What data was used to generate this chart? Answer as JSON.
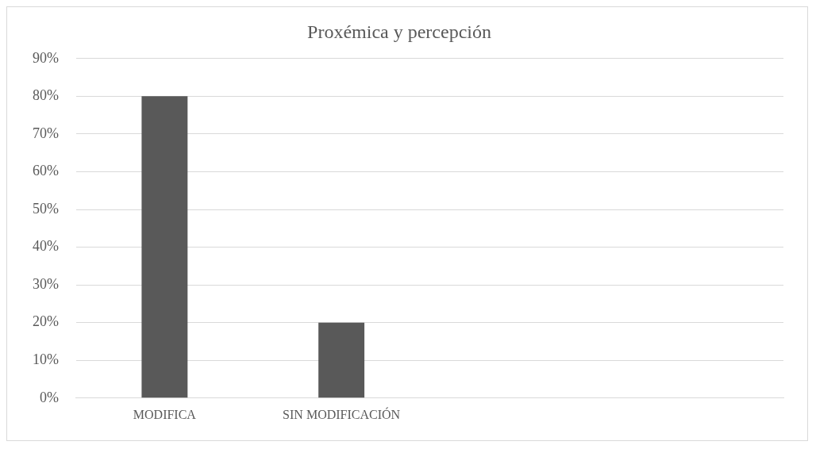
{
  "chart_data": {
    "type": "bar",
    "title": "Proxémica y percepción",
    "categories": [
      "MODIFICA",
      "SIN MODIFICACIÓN",
      null,
      null
    ],
    "series": [
      {
        "color": "#595959",
        "values": [
          80,
          20,
          null,
          null
        ]
      }
    ],
    "ylim": [
      0,
      90
    ],
    "yticks": [
      {
        "value": 0,
        "label": "0%"
      },
      {
        "value": 10,
        "label": "10%"
      },
      {
        "value": 20,
        "label": "20%"
      },
      {
        "value": 30,
        "label": "30%"
      },
      {
        "value": 40,
        "label": "40%"
      },
      {
        "value": 50,
        "label": "50%"
      },
      {
        "value": 60,
        "label": "60%"
      },
      {
        "value": 70,
        "label": "70%"
      },
      {
        "value": 80,
        "label": "80%"
      },
      {
        "value": 90,
        "label": "90%"
      }
    ],
    "grid": "y",
    "legend": false
  }
}
